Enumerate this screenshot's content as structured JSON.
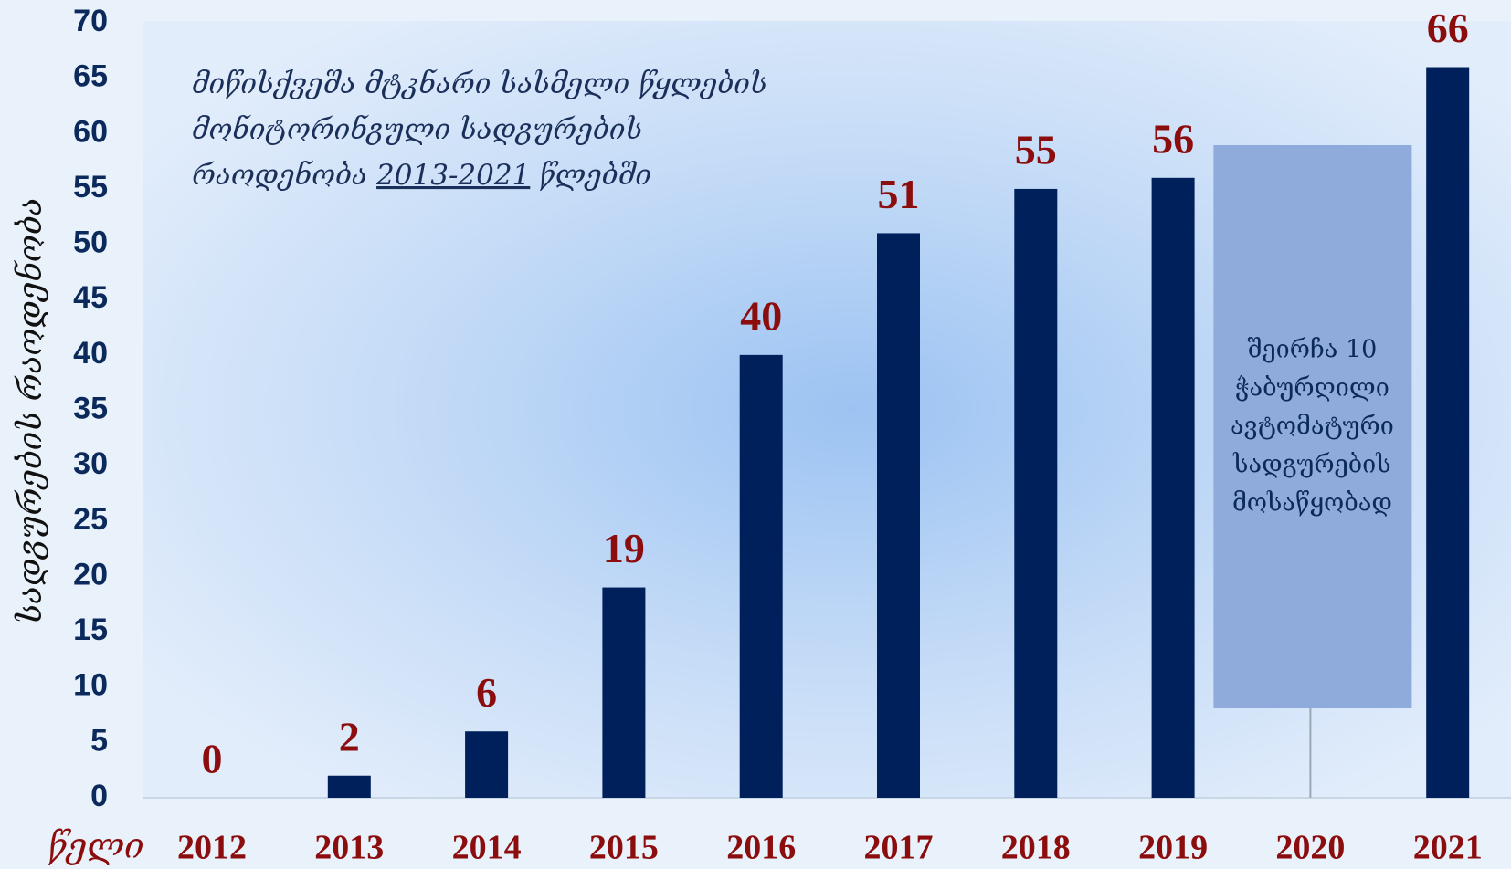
{
  "chart_data": {
    "type": "bar",
    "title_lines": [
      [
        "მიწისქვეშა მტკნარი სასმელი წყლების"
      ],
      [
        "მონიტორინგული სადგურების"
      ],
      [
        "რაოდენობა",
        "2013-2021",
        "წლებში"
      ]
    ],
    "x_label": "წელი",
    "y_label": "სადგურების რაოდენობა",
    "categories": [
      "2012",
      "2013",
      "2014",
      "2015",
      "2016",
      "2017",
      "2018",
      "2019",
      "2020",
      "2021"
    ],
    "values": [
      0,
      2,
      6,
      19,
      40,
      51,
      55,
      56,
      null,
      66
    ],
    "color": "#00205b",
    "ylim": [
      0,
      70
    ],
    "yticks": [
      0,
      5,
      10,
      15,
      20,
      25,
      30,
      35,
      40,
      45,
      50,
      55,
      60,
      65,
      70
    ],
    "annotation": {
      "category": "2020",
      "lines": [
        "შეირჩა 10",
        "ჭაბურღილი",
        "ავტომატური",
        "სადგურების",
        "მოსაწყობად"
      ]
    }
  }
}
